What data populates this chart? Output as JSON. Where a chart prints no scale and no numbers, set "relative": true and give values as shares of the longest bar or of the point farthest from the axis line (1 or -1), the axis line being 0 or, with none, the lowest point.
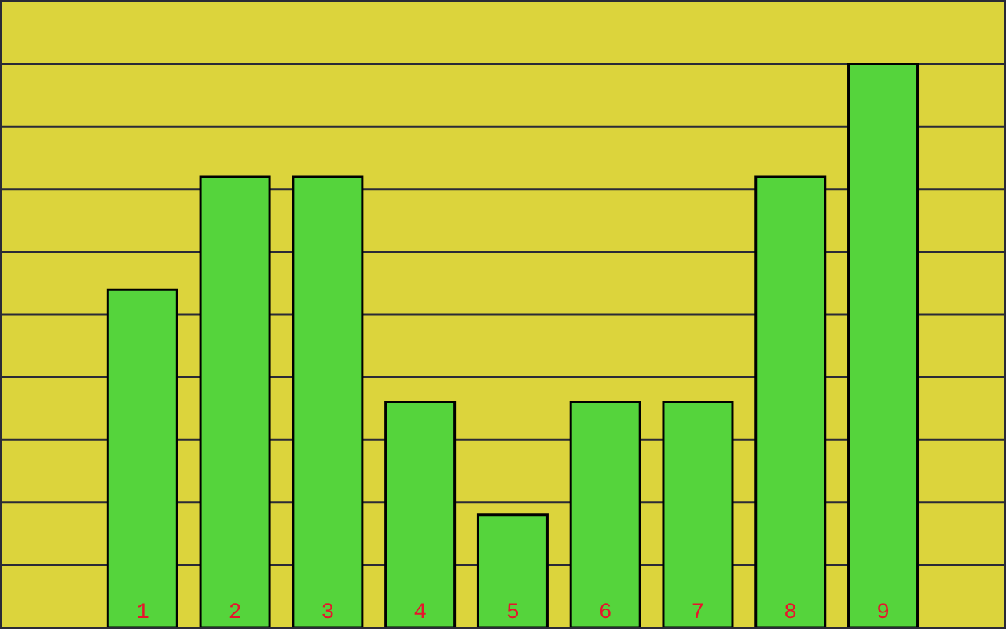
{
  "chart_data": {
    "type": "bar",
    "categories": [
      "1",
      "2",
      "3",
      "4",
      "5",
      "6",
      "7",
      "8",
      "9"
    ],
    "values": [
      0.6,
      0.8,
      0.8,
      0.4,
      0.2,
      0.4,
      0.4,
      0.8,
      1
    ],
    "color": "#55d43c",
    "relative": true,
    "grid": "y"
  }
}
